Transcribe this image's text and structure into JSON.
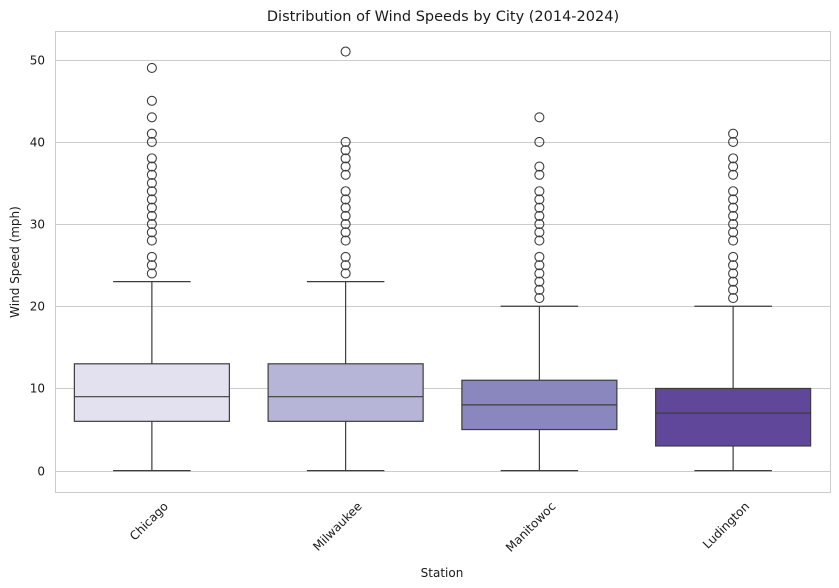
{
  "chart_data": {
    "type": "boxplot",
    "title": "Distribution of Wind Speeds by City (2014-2024)",
    "xlabel": "Station",
    "ylabel": "Wind Speed (mph)",
    "ylim": [
      -2.6,
      53.5
    ],
    "yticks": [
      0,
      10,
      20,
      30,
      40,
      50
    ],
    "grid": "horizontal",
    "categories": [
      "Chicago",
      "Milwaukee",
      "Manitowoc",
      "Ludington"
    ],
    "colors": {
      "Chicago": "#e3e1ef",
      "Milwaukee": "#b6b5d7",
      "Manitowoc": "#8987bd",
      "Ludington": "#60479a"
    },
    "series": [
      {
        "category": "Chicago",
        "whisker_low": 0,
        "q1": 6,
        "median": 9,
        "q3": 13,
        "whisker_high": 23,
        "outliers": [
          24,
          25,
          26,
          28,
          29,
          30,
          31,
          32,
          33,
          34,
          35,
          36,
          37,
          38,
          40,
          41,
          43,
          45,
          49
        ]
      },
      {
        "category": "Milwaukee",
        "whisker_low": 0,
        "q1": 6,
        "median": 9,
        "q3": 13,
        "whisker_high": 23,
        "outliers": [
          24,
          25,
          26,
          28,
          29,
          30,
          31,
          32,
          33,
          34,
          36,
          37,
          38,
          39,
          40,
          51
        ]
      },
      {
        "category": "Manitowoc",
        "whisker_low": 0,
        "q1": 5,
        "median": 8,
        "q3": 11,
        "whisker_high": 20,
        "outliers": [
          21,
          22,
          23,
          24,
          25,
          26,
          28,
          29,
          30,
          31,
          32,
          33,
          34,
          36,
          37,
          40,
          43
        ]
      },
      {
        "category": "Ludington",
        "whisker_low": 0,
        "q1": 3,
        "median": 7,
        "q3": 10,
        "whisker_high": 20,
        "outliers": [
          21,
          22,
          23,
          24,
          25,
          26,
          28,
          29,
          30,
          31,
          32,
          33,
          34,
          36,
          37,
          38,
          40,
          41
        ]
      }
    ]
  }
}
